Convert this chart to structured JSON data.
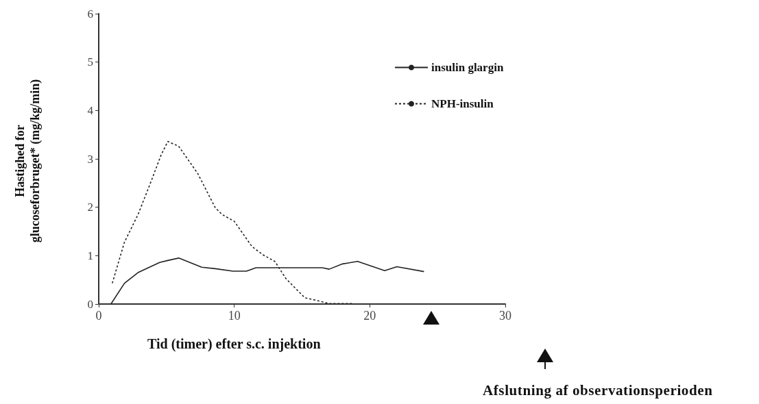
{
  "chart_data": {
    "type": "line",
    "xlabel": "Tid (timer) efter s.c. injektion",
    "ylabel": "Hastighed for\nglucoseforbruget* (mg/kg/min)",
    "xlim": [
      0,
      30
    ],
    "xticks": [
      0,
      10,
      20,
      30
    ],
    "ylim": [
      0,
      6
    ],
    "yticks": [
      0,
      1,
      2,
      3,
      4,
      5,
      6
    ],
    "grid": false,
    "legend": "top right",
    "marker": "none",
    "series": [
      {
        "name": "insulin glargin",
        "color": "#222222",
        "line_style": "solid",
        "x": [
          0.9,
          1.9,
          2.9,
          4.5,
          5.1,
          5.9,
          7.6,
          8.6,
          9.9,
          10.9,
          11.6,
          14.7,
          16.5,
          17,
          18,
          19.1,
          21.1,
          22,
          24
        ],
        "values": [
          0,
          0.43,
          0.65,
          0.86,
          0.9,
          0.95,
          0.76,
          0.73,
          0.68,
          0.68,
          0.75,
          0.75,
          0.75,
          0.72,
          0.83,
          0.88,
          0.69,
          0.77,
          0.67
        ]
      },
      {
        "name": "NPH-insulin",
        "color": "#222222",
        "line_style": "dashed",
        "x": [
          1,
          1.9,
          2.9,
          3.9,
          4.6,
          5.1,
          5.9,
          7.3,
          8.6,
          9.1,
          10,
          11.3,
          12.1,
          13,
          13.8,
          15.2,
          16,
          17,
          18.7
        ],
        "values": [
          0.43,
          1.28,
          1.85,
          2.56,
          3.08,
          3.36,
          3.26,
          2.7,
          1.99,
          1.85,
          1.71,
          1.19,
          1.02,
          0.88,
          0.53,
          0.13,
          0.08,
          0.01,
          0.01
        ]
      }
    ],
    "annotations": [
      "Afslutning af observationsperioden"
    ]
  }
}
